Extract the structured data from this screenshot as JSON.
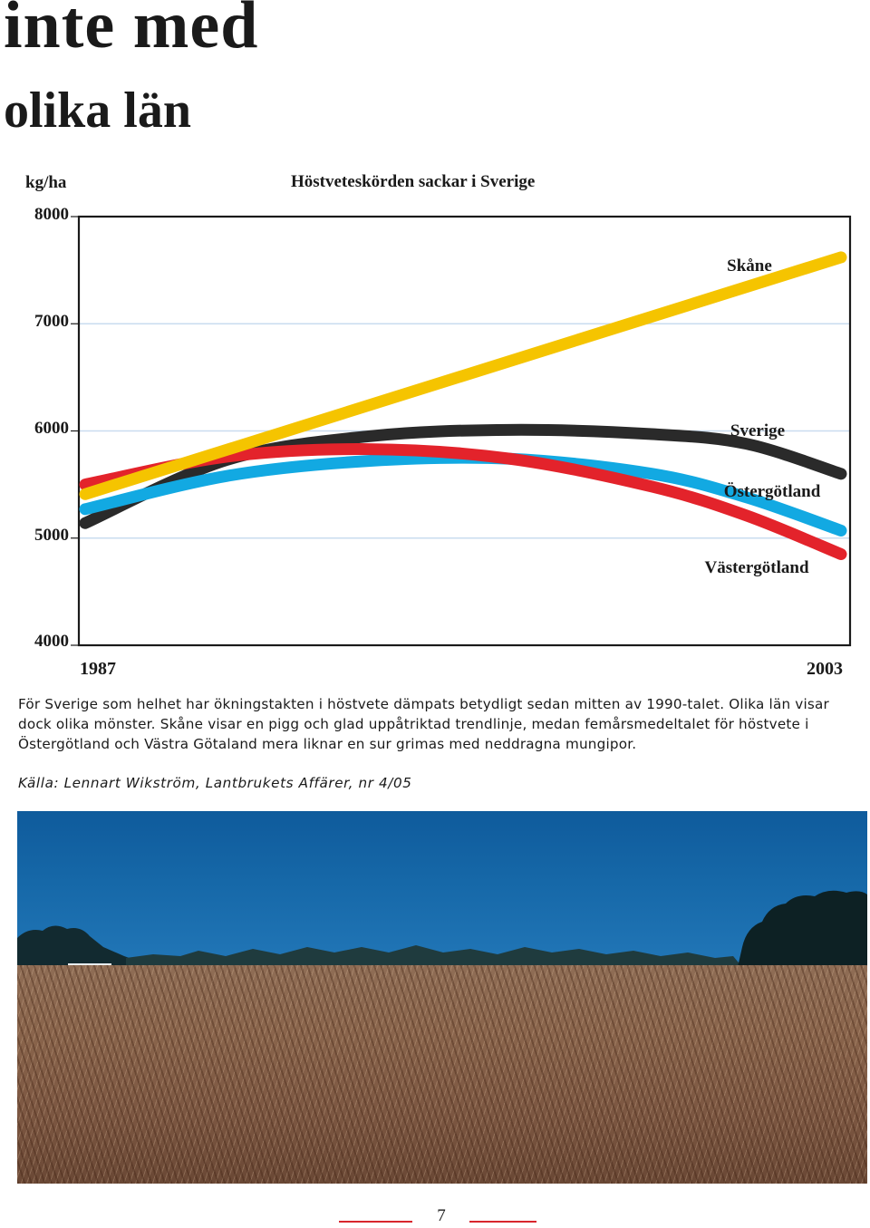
{
  "headline": {
    "line1": "inte med",
    "line2": "olika län"
  },
  "chart_data": {
    "type": "line",
    "title": "Höstveteskörden sackar i Sverige",
    "ylabel": "kg/ha",
    "xlabel": "",
    "ylim": [
      4000,
      8000
    ],
    "yticks": [
      8000,
      7000,
      6000,
      5000,
      4000
    ],
    "xlim": [
      1987,
      2003
    ],
    "xticks": [
      1987,
      2003
    ],
    "grid": true,
    "series": [
      {
        "name": "Skåne",
        "color": "#f5c400",
        "x": [
          1987,
          2003
        ],
        "y": [
          5410,
          7620
        ]
      },
      {
        "name": "Västergötland",
        "color": "#e3232b",
        "x": [
          1987,
          1990,
          1993,
          1996,
          1999,
          2001,
          2003
        ],
        "y": [
          5500,
          5760,
          5830,
          5740,
          5480,
          5210,
          4850
        ]
      },
      {
        "name": "Östergötland",
        "color": "#12a9e2",
        "x": [
          1987,
          1990,
          1993,
          1996,
          1999,
          2001,
          2003
        ],
        "y": [
          5270,
          5580,
          5720,
          5740,
          5600,
          5380,
          5070
        ]
      },
      {
        "name": "Sverige",
        "color": "#2a2a2a",
        "x": [
          1987,
          1990,
          1993,
          1996,
          1999,
          2001,
          2003
        ],
        "y": [
          5140,
          5730,
          5950,
          6010,
          5970,
          5880,
          5600
        ]
      }
    ],
    "annotations": [
      "Skåne",
      "Sverige",
      "Östergötland",
      "Västergötland"
    ]
  },
  "caption": "För Sverige som helhet har ökningstakten i höstvete dämpats betydligt sedan mitten av 1990-talet. Olika län visar dock olika mönster. Skåne visar en pigg och glad uppåtriktad trendlinje, medan femårsmedeltalet för höstvete i Östergötland och Västra Götaland mera liknar en sur grimas med neddragna mungipor.",
  "source": "Källa: Lennart Wikström, Lantbrukets Affärer, nr 4/05",
  "page_number": "7",
  "colors": {
    "page_rule": "#d8262d",
    "gridline": "#c9dcef"
  }
}
